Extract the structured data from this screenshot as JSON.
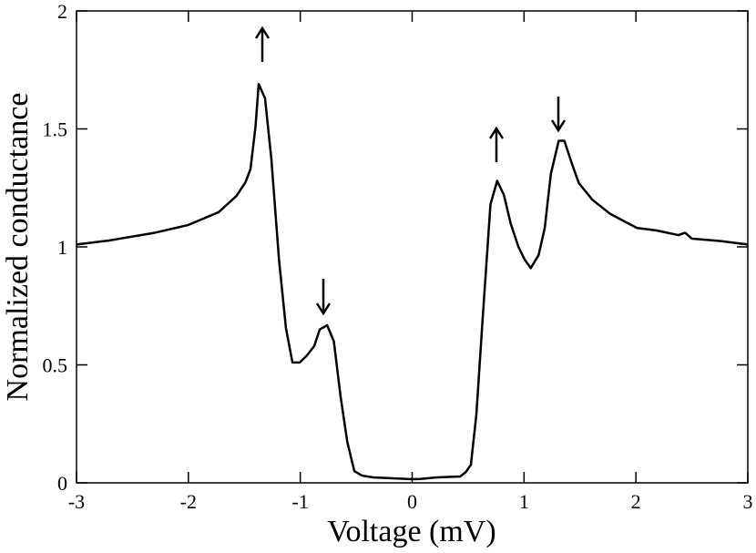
{
  "chart_data": {
    "type": "line",
    "xlabel": "Voltage (mV)",
    "ylabel": "Normalized conductance",
    "x": [
      -3,
      -2.71,
      -2.3,
      -2.0,
      -1.73,
      -1.57,
      -1.49,
      -1.445,
      -1.4,
      -1.372,
      -1.315,
      -1.258,
      -1.19,
      -1.128,
      -1.07,
      -1.005,
      -0.94,
      -0.875,
      -0.826,
      -0.76,
      -0.7,
      -0.64,
      -0.58,
      -0.517,
      -0.45,
      -0.35,
      -0.02,
      0.06,
      0.22,
      0.43,
      0.48,
      0.525,
      0.574,
      0.63,
      0.7,
      0.76,
      0.82,
      0.88,
      0.95,
      1.006,
      1.06,
      1.13,
      1.185,
      1.24,
      1.31,
      1.36,
      1.43,
      1.49,
      1.61,
      1.77,
      2.01,
      2.18,
      2.38,
      2.44,
      2.5,
      2.75,
      3.0
    ],
    "values": [
      1.01,
      1.027,
      1.06,
      1.093,
      1.147,
      1.216,
      1.274,
      1.33,
      1.51,
      1.69,
      1.63,
      1.37,
      0.945,
      0.656,
      0.51,
      0.51,
      0.54,
      0.58,
      0.65,
      0.668,
      0.6,
      0.367,
      0.174,
      0.05,
      0.031,
      0.023,
      0.016,
      0.016,
      0.023,
      0.027,
      0.046,
      0.077,
      0.29,
      0.695,
      1.18,
      1.28,
      1.22,
      1.1,
      1.0,
      0.946,
      0.91,
      0.965,
      1.08,
      1.31,
      1.45,
      1.45,
      1.35,
      1.27,
      1.2,
      1.14,
      1.08,
      1.07,
      1.05,
      1.06,
      1.035,
      1.025,
      1.01
    ],
    "color": "#000000",
    "xlim": [
      -3,
      3
    ],
    "xticks": [
      -3,
      -2,
      -1,
      0,
      1,
      2,
      3
    ],
    "ylim": [
      0,
      2
    ],
    "yticks": [
      0,
      0.5,
      1,
      1.5,
      2
    ]
  }
}
